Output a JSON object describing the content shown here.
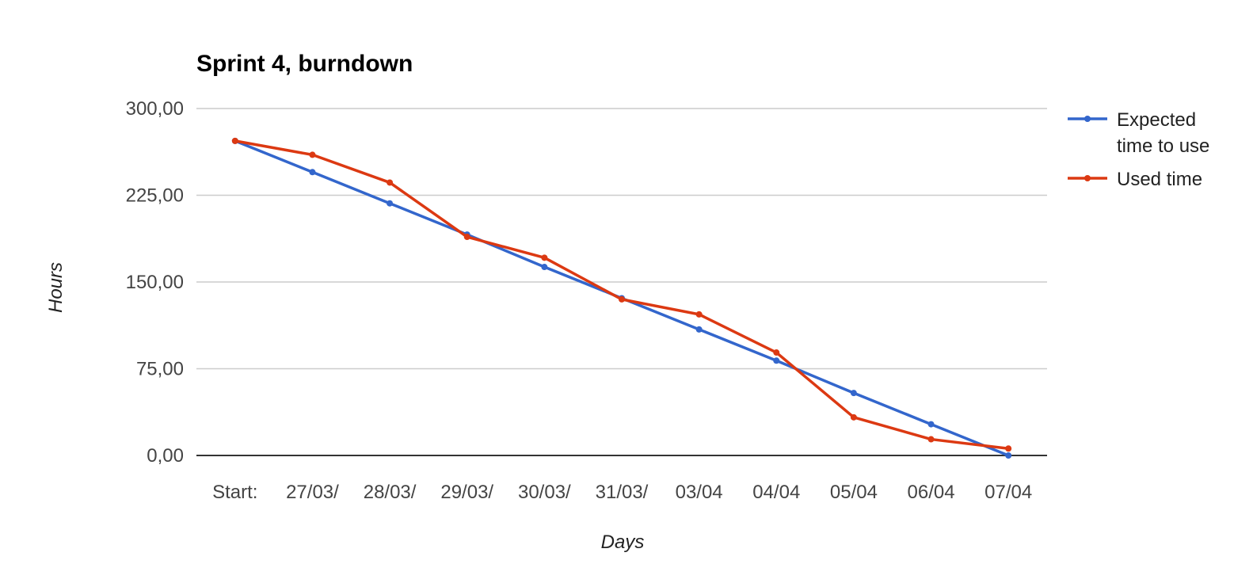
{
  "chart_data": {
    "type": "line",
    "title": "Sprint 4, burndown",
    "xlabel": "Days",
    "ylabel": "Hours",
    "categories": [
      "Start:",
      "27/03/",
      "28/03/",
      "29/03/",
      "30/03/",
      "31/03/",
      "03/04",
      "04/04",
      "05/04",
      "06/04",
      "07/04"
    ],
    "ylim": [
      0,
      300
    ],
    "yticks": [
      0,
      75,
      150,
      225,
      300
    ],
    "ytick_labels": [
      "0,00",
      "75,00",
      "150,00",
      "225,00",
      "300,00"
    ],
    "grid": true,
    "legend_position": "right",
    "series": [
      {
        "name": "Expected time to use",
        "legend_lines": [
          "Expected",
          "time to use"
        ],
        "color": "#3366cc",
        "values": [
          272,
          245,
          218,
          191,
          163,
          136,
          109,
          82,
          54,
          27,
          0
        ]
      },
      {
        "name": "Used time",
        "legend_lines": [
          "Used time"
        ],
        "color": "#dc3912",
        "values": [
          272,
          260,
          236,
          189,
          171,
          135,
          122,
          89,
          33,
          14,
          6
        ]
      }
    ]
  }
}
